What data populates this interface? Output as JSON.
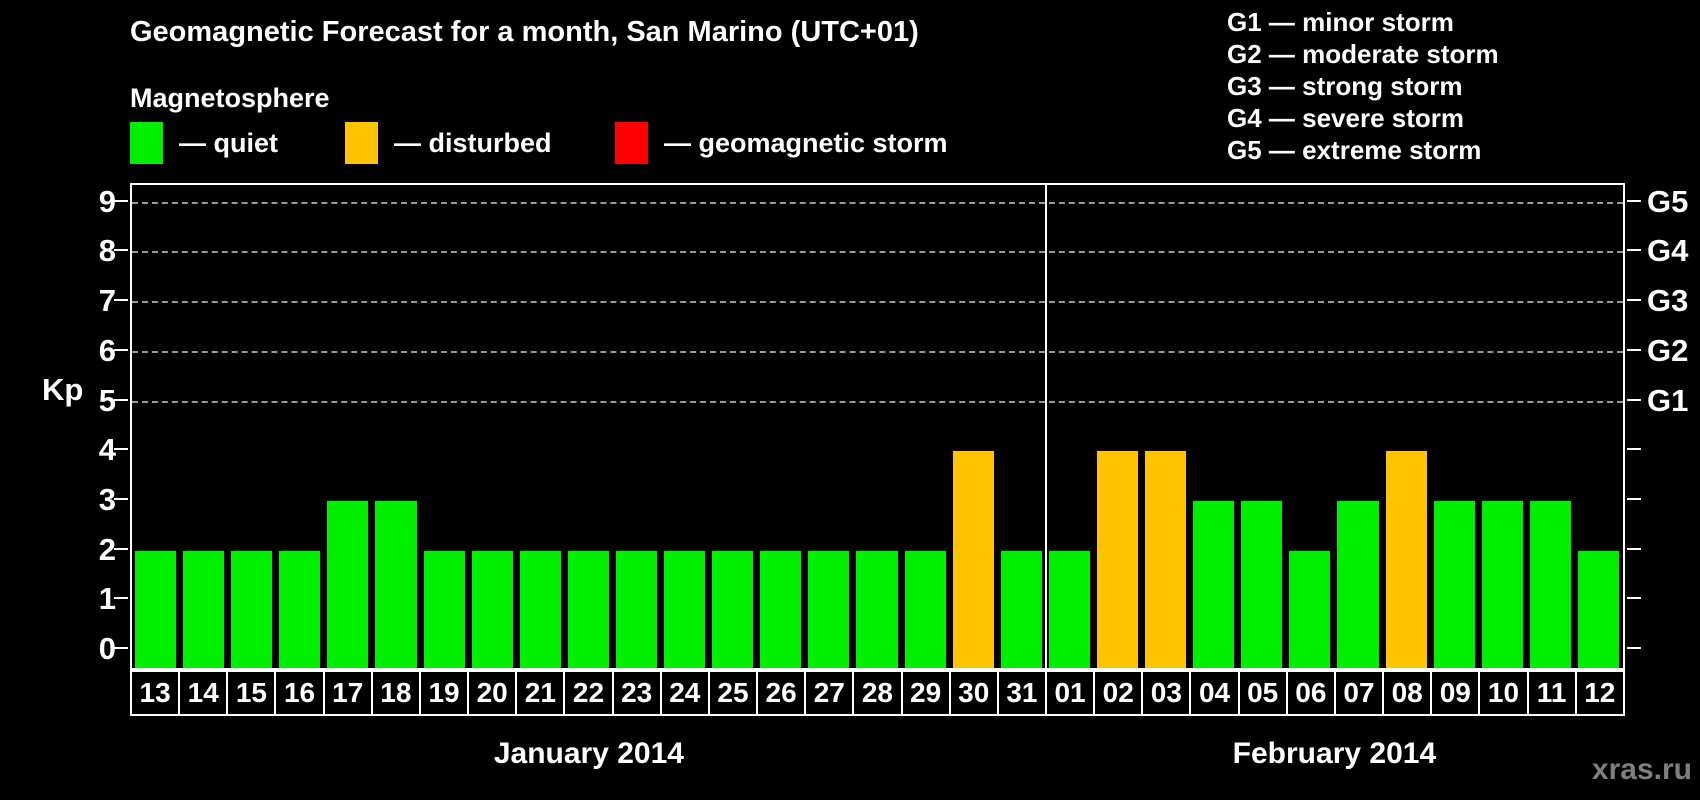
{
  "title": "Geomagnetic Forecast for a month, San Marino (UTC+01)",
  "legend": {
    "heading": "Magnetosphere",
    "items": [
      {
        "name": "quiet",
        "label": "— quiet",
        "color": "#00EE00"
      },
      {
        "name": "disturbed",
        "label": "— disturbed",
        "color": "#FFC400"
      },
      {
        "name": "storm",
        "label": "— geomagnetic storm",
        "color": "#FF0000"
      }
    ]
  },
  "g_legend": [
    "G1 — minor storm",
    "G2 — moderate storm",
    "G3 — strong storm",
    "G4 — severe storm",
    "G5 — extreme storm"
  ],
  "axis": {
    "ylabel": "Kp",
    "kp_ticks": [
      0,
      1,
      2,
      3,
      4,
      5,
      6,
      7,
      8,
      9
    ],
    "g_ticks": [
      {
        "kp": 5,
        "label": "G1"
      },
      {
        "kp": 6,
        "label": "G2"
      },
      {
        "kp": 7,
        "label": "G3"
      },
      {
        "kp": 8,
        "label": "G4"
      },
      {
        "kp": 9,
        "label": "G5"
      }
    ]
  },
  "watermark": "xras.ru",
  "chart_data": {
    "type": "bar",
    "title": "Geomagnetic Forecast for a month, San Marino (UTC+01)",
    "ylabel": "Kp",
    "ylim": [
      0,
      9
    ],
    "grid": "dashed horizontal gridlines at Kp 5,6,7,8,9 (G1–G5 levels)",
    "legend_position": "top",
    "categories": [
      "13",
      "14",
      "15",
      "16",
      "17",
      "18",
      "19",
      "20",
      "21",
      "22",
      "23",
      "24",
      "25",
      "26",
      "27",
      "28",
      "29",
      "30",
      "31",
      "01",
      "02",
      "03",
      "04",
      "05",
      "06",
      "07",
      "08",
      "09",
      "10",
      "11",
      "12"
    ],
    "values": [
      2,
      2,
      2,
      2,
      3,
      3,
      2,
      2,
      2,
      2,
      2,
      2,
      2,
      2,
      2,
      2,
      2,
      4,
      2,
      2,
      4,
      4,
      3,
      3,
      2,
      3,
      4,
      3,
      3,
      3,
      2
    ],
    "statuses": [
      "quiet",
      "quiet",
      "quiet",
      "quiet",
      "quiet",
      "quiet",
      "quiet",
      "quiet",
      "quiet",
      "quiet",
      "quiet",
      "quiet",
      "quiet",
      "quiet",
      "quiet",
      "quiet",
      "quiet",
      "disturbed",
      "quiet",
      "quiet",
      "disturbed",
      "disturbed",
      "quiet",
      "quiet",
      "quiet",
      "quiet",
      "disturbed",
      "quiet",
      "quiet",
      "quiet",
      "quiet"
    ],
    "colors": {
      "quiet": "#00EE00",
      "disturbed": "#FFC400",
      "storm": "#FF0000"
    },
    "x_groups": [
      {
        "label": "January 2014",
        "count": 19
      },
      {
        "label": "February 2014",
        "count": 12
      }
    ]
  }
}
